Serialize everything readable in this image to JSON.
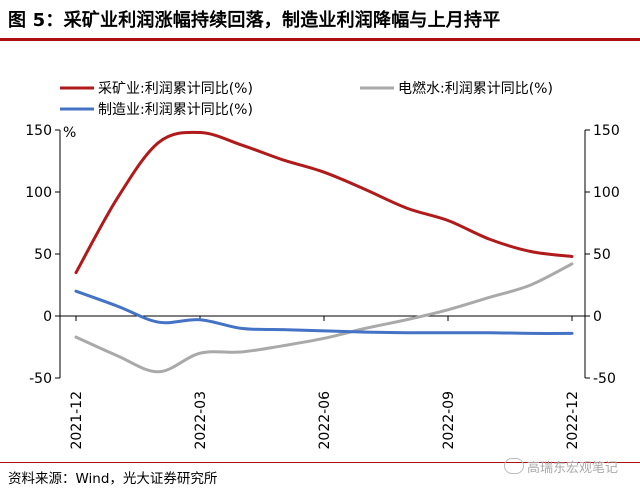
{
  "figure": {
    "title": "图 5：采矿业利润涨幅持续回落，制造业利润降幅与上月持平",
    "source": "资料来源：Wind，光大证券研究所",
    "watermark": "高瑞东宏观笔记"
  },
  "chart_data": {
    "type": "line",
    "unit_label": "%",
    "ylim": [
      -50,
      150
    ],
    "yticks": [
      -50,
      0,
      50,
      100,
      150
    ],
    "x_tick_labels": [
      "2021-12",
      "2022-03",
      "2022-06",
      "2022-09",
      "2022-12"
    ],
    "x": [
      "2021-12",
      "2022-01",
      "2022-02",
      "2022-03",
      "2022-04",
      "2022-05",
      "2022-06",
      "2022-07",
      "2022-08",
      "2022-09",
      "2022-10",
      "2022-11",
      "2022-12"
    ],
    "legend_position": "top",
    "grid": false,
    "series": [
      {
        "name": "采矿业:利润累计同比(%)",
        "color": "#b01a1a",
        "values": [
          35,
          95,
          140,
          148,
          138,
          126,
          116,
          102,
          87,
          77,
          62,
          52,
          48
        ]
      },
      {
        "name": "电燃水:利润累计同比(%)",
        "color": "#a9a9a9",
        "values": [
          -17,
          -32,
          -45,
          -30,
          -29,
          -24,
          -18,
          -10,
          -3,
          5,
          15,
          25,
          42
        ]
      },
      {
        "name": "制造业:利润累计同比(%)",
        "color": "#4472c4",
        "values": [
          20,
          8,
          -5,
          -3,
          -10,
          -11,
          -12,
          -13,
          -13.5,
          -13.5,
          -13.5,
          -14,
          -14
        ]
      }
    ]
  }
}
